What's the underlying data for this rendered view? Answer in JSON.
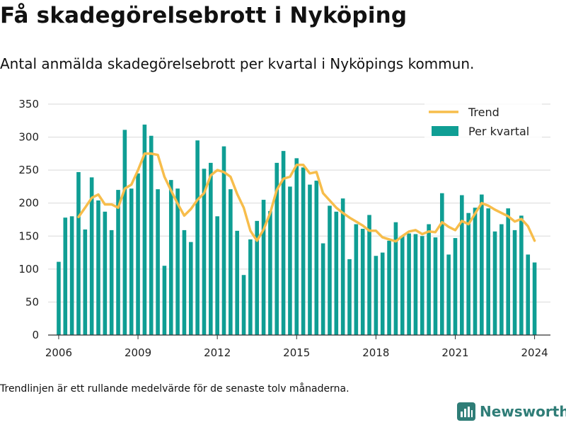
{
  "header": {
    "title": "Få skadegörelsebrott i Nyköping",
    "subtitle": "Antal anmälda skadegörelsebrott per kvartal i Nyköpings kommun."
  },
  "footnote": "Trendlinjen är ett rullande medelvärde för de senaste tolv månaderna.",
  "brand": {
    "name": "Newsworthy",
    "icon": "bar-chart-logo-icon"
  },
  "colors": {
    "bars": "#0f9e94",
    "trend": "#f7bd4b",
    "grid": "#d9d9d9",
    "axis": "#333333"
  },
  "chart_data": {
    "type": "bar",
    "xlim": [
      2005.6,
      2024.6
    ],
    "ylim": [
      0,
      350
    ],
    "y_ticks": [
      "0",
      "50",
      "100",
      "150",
      "200",
      "250",
      "300",
      "350"
    ],
    "x_ticks": [
      "2006",
      "2009",
      "2012",
      "2015",
      "2018",
      "2021",
      "2024"
    ],
    "grid": "horizontal",
    "legend_position": "top-right",
    "legend": [
      "Trend",
      "Per kvartal"
    ],
    "series": [
      {
        "name": "Per kvartal",
        "type": "bar",
        "x": [
          2006.0,
          2006.25,
          2006.5,
          2006.75,
          2007.0,
          2007.25,
          2007.5,
          2007.75,
          2008.0,
          2008.25,
          2008.5,
          2008.75,
          2009.0,
          2009.25,
          2009.5,
          2009.75,
          2010.0,
          2010.25,
          2010.5,
          2010.75,
          2011.0,
          2011.25,
          2011.5,
          2011.75,
          2012.0,
          2012.25,
          2012.5,
          2012.75,
          2013.0,
          2013.25,
          2013.5,
          2013.75,
          2014.0,
          2014.25,
          2014.5,
          2014.75,
          2015.0,
          2015.25,
          2015.5,
          2015.75,
          2016.0,
          2016.25,
          2016.5,
          2016.75,
          2017.0,
          2017.25,
          2017.5,
          2017.75,
          2018.0,
          2018.25,
          2018.5,
          2018.75,
          2019.0,
          2019.25,
          2019.5,
          2019.75,
          2020.0,
          2020.25,
          2020.5,
          2020.75,
          2021.0,
          2021.25,
          2021.5,
          2021.75,
          2022.0,
          2022.25,
          2022.5,
          2022.75,
          2023.0,
          2023.25,
          2023.5,
          2023.75,
          2024.0
        ],
        "values": [
          111,
          178,
          180,
          247,
          160,
          239,
          204,
          187,
          159,
          220,
          311,
          222,
          245,
          319,
          302,
          221,
          105,
          235,
          222,
          159,
          141,
          295,
          252,
          261,
          180,
          286,
          221,
          158,
          91,
          145,
          173,
          205,
          188,
          261,
          279,
          225,
          268,
          254,
          228,
          234,
          139,
          196,
          187,
          207,
          115,
          168,
          161,
          182,
          120,
          125,
          143,
          171,
          150,
          154,
          153,
          150,
          168,
          148,
          215,
          122,
          147,
          212,
          185,
          193,
          213,
          192,
          157,
          168,
          192,
          159,
          181,
          122,
          110
        ]
      },
      {
        "name": "Trend",
        "type": "line",
        "x": [
          2006.75,
          2007.0,
          2007.25,
          2007.5,
          2007.75,
          2008.0,
          2008.25,
          2008.5,
          2008.75,
          2009.0,
          2009.25,
          2009.5,
          2009.75,
          2010.0,
          2010.25,
          2010.5,
          2010.75,
          2011.0,
          2011.25,
          2011.5,
          2011.75,
          2012.0,
          2012.25,
          2012.5,
          2012.75,
          2013.0,
          2013.25,
          2013.5,
          2013.75,
          2014.0,
          2014.25,
          2014.5,
          2014.75,
          2015.0,
          2015.25,
          2015.5,
          2015.75,
          2016.0,
          2016.25,
          2016.5,
          2016.75,
          2017.0,
          2017.25,
          2017.5,
          2017.75,
          2018.0,
          2018.25,
          2018.5,
          2018.75,
          2019.0,
          2019.25,
          2019.5,
          2019.75,
          2020.0,
          2020.25,
          2020.5,
          2020.75,
          2021.0,
          2021.25,
          2021.5,
          2021.75,
          2022.0,
          2022.25,
          2022.5,
          2022.75,
          2023.0,
          2023.25,
          2023.5,
          2023.75,
          2024.0
        ],
        "values": [
          179,
          193,
          208,
          213,
          198,
          198,
          193,
          222,
          228,
          250,
          275,
          275,
          273,
          240,
          219,
          199,
          181,
          191,
          205,
          215,
          242,
          250,
          247,
          240,
          214,
          193,
          158,
          143,
          160,
          185,
          220,
          237,
          240,
          258,
          258,
          245,
          247,
          215,
          204,
          193,
          185,
          178,
          172,
          166,
          158,
          158,
          148,
          145,
          142,
          150,
          157,
          159,
          153,
          157,
          156,
          171,
          164,
          159,
          173,
          168,
          184,
          200,
          196,
          190,
          185,
          180,
          172,
          176,
          165,
          143
        ]
      }
    ]
  }
}
